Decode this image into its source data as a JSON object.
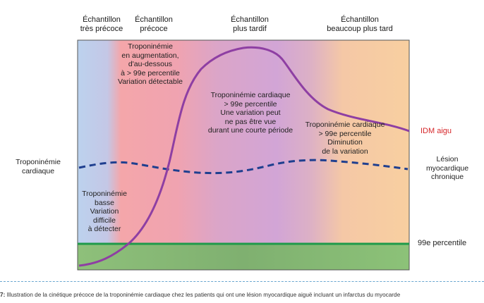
{
  "headers": {
    "very_early": [
      "Échantillon",
      "très précoce"
    ],
    "early": [
      "Échantillon",
      "précoce"
    ],
    "later": [
      "Échantillon",
      "plus tardif"
    ],
    "much_later": [
      "Échantillon",
      "beaucoup plus tard"
    ]
  },
  "annotations": {
    "rising": [
      "Troponinémie",
      "en augmentation,",
      "d'au-dessous",
      "à > 99e percentile",
      "Variation détectable"
    ],
    "peak": [
      "Troponinémie cardiaque",
      "> 99e percentile",
      "Une variation peut",
      "ne pas être vue",
      "durant une courte période"
    ],
    "decline": [
      "Troponinémie cardiaque",
      "> 99e percentile",
      "Diminution",
      "de la variation"
    ],
    "low": [
      "Troponinémie",
      "basse",
      "Variation",
      "difficile",
      "à détecter"
    ]
  },
  "left_axis_label": [
    "Troponinémie",
    "cardiaque"
  ],
  "right_labels": {
    "acute_mi": "IDM aigu",
    "chronic": [
      "Lésion",
      "myocardique",
      "chronique"
    ],
    "percentile": "99e percentile"
  },
  "caption": {
    "number": "7",
    "text": "Illustration de la cinétique précoce de la troponinémie cardiaque chez les patients qui ont une lésion myocardique aiguë incluant un infarctus du myocarde"
  },
  "colors": {
    "acute_curve": "#8e3fa3",
    "chronic_curve": "#1f3f8f",
    "percentile_line": "#1f9a4a",
    "acute_label": "#d6262a"
  }
}
